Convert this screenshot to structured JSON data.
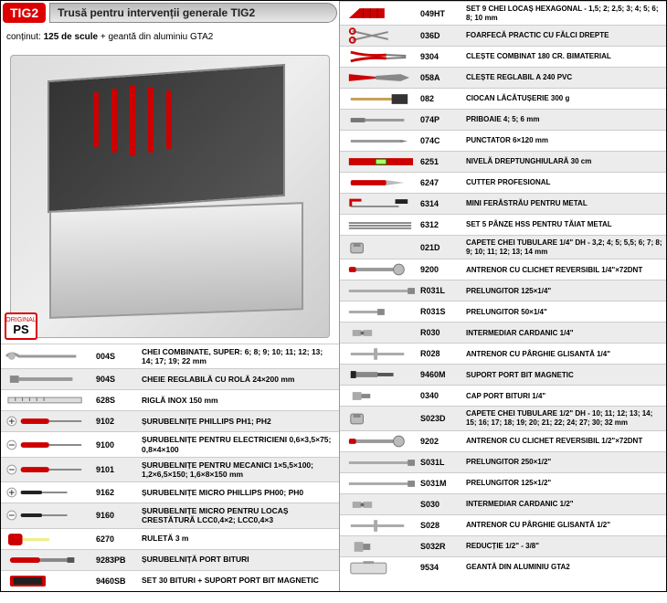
{
  "header": {
    "badge": "TIG2",
    "title": "Trusă pentru intervenții generale TIG2"
  },
  "subheader": {
    "label": "conținut:",
    "bold": "125 de scule",
    "rest": "+ geantă din aluminiu GTA2"
  },
  "psStamp": {
    "top": "ORIGINAL",
    "main": "PS"
  },
  "colors": {
    "brand_red": "#d00020",
    "row_alt": "#ececec",
    "border": "#cccccc"
  },
  "leftItems": [
    {
      "code": "004S",
      "desc": "CHEI COMBINATE, SUPER: 6; 8; 9; 10; 11; 12; 13; 14; 17; 19; 22 mm",
      "icon": "wrench"
    },
    {
      "code": "904S",
      "desc": "CHEIE REGLABILĂ CU ROLĂ 24×200 mm",
      "icon": "adj-wrench"
    },
    {
      "code": "628S",
      "desc": "RIGLĂ INOX 150 mm",
      "icon": "ruler"
    },
    {
      "code": "9102",
      "desc": "ȘURUBELNIȚE PHILLIPS PH1; PH2",
      "icon": "screwdriver-ph"
    },
    {
      "code": "9100",
      "desc": "ȘURUBELNIȚE PENTRU ELECTRICIENI 0,6×3,5×75; 0,8×4×100",
      "icon": "screwdriver-sl"
    },
    {
      "code": "9101",
      "desc": "ȘURUBELNIȚE PENTRU MECANICI 1×5,5×100; 1,2×6,5×150; 1,6×8×150 mm",
      "icon": "screwdriver-sl"
    },
    {
      "code": "9162",
      "desc": "ȘURUBELNIȚE MICRO PHILLIPS PH00; PH0",
      "icon": "screwdriver-micro-ph"
    },
    {
      "code": "9160",
      "desc": "ȘURUBELNIȚE MICRO PENTRU LOCAȘ CRESTĂTURĂ LCC0,4×2; LCC0,4×3",
      "icon": "screwdriver-micro-sl"
    },
    {
      "code": "6270",
      "desc": "RULETĂ 3 m",
      "icon": "tape"
    },
    {
      "code": "9283PB",
      "desc": "ȘURUBELNIȚĂ PORT BITURI",
      "icon": "bitholder"
    },
    {
      "code": "9460SB",
      "desc": "SET 30 BITURI + SUPORT PORT BIT MAGNETIC",
      "icon": "bitset"
    }
  ],
  "rightItems": [
    {
      "code": "049HT",
      "desc": "SET 9 CHEI LOCAȘ HEXAGONAL - 1,5; 2; 2,5; 3; 4; 5; 6; 8; 10 mm",
      "icon": "hexset"
    },
    {
      "code": "036D",
      "desc": "FOARFECĂ PRACTIC CU FĂLCI DREPTE",
      "icon": "scissors"
    },
    {
      "code": "9304",
      "desc": "CLEȘTE COMBINAT 180 CR. BIMATERIAL",
      "icon": "pliers"
    },
    {
      "code": "058A",
      "desc": "CLEȘTE REGLABIL A 240 PVC",
      "icon": "waterpump"
    },
    {
      "code": "082",
      "desc": "CIOCAN LĂCĂTUȘERIE 300 g",
      "icon": "hammer"
    },
    {
      "code": "074P",
      "desc": "PRIBOAIE 4; 5; 6 mm",
      "icon": "punch"
    },
    {
      "code": "074C",
      "desc": "PUNCTATOR 6×120 mm",
      "icon": "centerpunch"
    },
    {
      "code": "6251",
      "desc": "NIVELĂ DREPTUNGHIULARĂ 30 cm",
      "icon": "level"
    },
    {
      "code": "6247",
      "desc": "CUTTER PROFESIONAL",
      "icon": "cutter"
    },
    {
      "code": "6314",
      "desc": "MINI FERĂSTRĂU PENTRU METAL",
      "icon": "hacksaw"
    },
    {
      "code": "6312",
      "desc": "SET 5 PÂNZE HSS PENTRU TĂIAT METAL",
      "icon": "blades"
    },
    {
      "code": "021D",
      "desc": "CAPETE CHEI TUBULARE 1/4\" DH - 3,2; 4; 5; 5,5; 6; 7; 8; 9; 10; 11; 12; 13; 14 mm",
      "icon": "socket"
    },
    {
      "code": "9200",
      "desc": "ANTRENOR CU CLICHET REVERSIBIL 1/4\"×72DNT",
      "icon": "ratchet"
    },
    {
      "code": "R031L",
      "desc": "PRELUNGITOR 125×1/4\"",
      "icon": "extbar"
    },
    {
      "code": "R031S",
      "desc": "PRELUNGITOR 50×1/4\"",
      "icon": "extbar-s"
    },
    {
      "code": "R030",
      "desc": "INTERMEDIAR CARDANIC 1/4\"",
      "icon": "ujoint"
    },
    {
      "code": "R028",
      "desc": "ANTRENOR CU PÂRGHIE GLISANTĂ 1/4\"",
      "icon": "tbar"
    },
    {
      "code": "9460M",
      "desc": "SUPORT PORT BIT MAGNETIC",
      "icon": "mag-bit"
    },
    {
      "code": "0340",
      "desc": "CAP PORT BITURI 1/4\"",
      "icon": "bit-adapter"
    },
    {
      "code": "S023D",
      "desc": "CAPETE CHEI TUBULARE 1/2\" DH - 10; 11; 12; 13; 14; 15; 16; 17; 18; 19; 20; 21; 22; 24; 27; 30; 32 mm",
      "icon": "socket"
    },
    {
      "code": "9202",
      "desc": "ANTRENOR CU CLICHET REVERSIBIL 1/2\"×72DNT",
      "icon": "ratchet"
    },
    {
      "code": "S031L",
      "desc": "PRELUNGITOR 250×1/2\"",
      "icon": "extbar"
    },
    {
      "code": "S031M",
      "desc": "PRELUNGITOR 125×1/2\"",
      "icon": "extbar"
    },
    {
      "code": "S030",
      "desc": "INTERMEDIAR CARDANIC 1/2\"",
      "icon": "ujoint"
    },
    {
      "code": "S028",
      "desc": "ANTRENOR CU PÂRGHIE GLISANTĂ 1/2\"",
      "icon": "tbar"
    },
    {
      "code": "S032R",
      "desc": "REDUCȚIE 1/2\" - 3/8\"",
      "icon": "reducer"
    },
    {
      "code": "9534",
      "desc": "GEANTĂ DIN ALUMINIU GTA2",
      "icon": "case"
    }
  ]
}
